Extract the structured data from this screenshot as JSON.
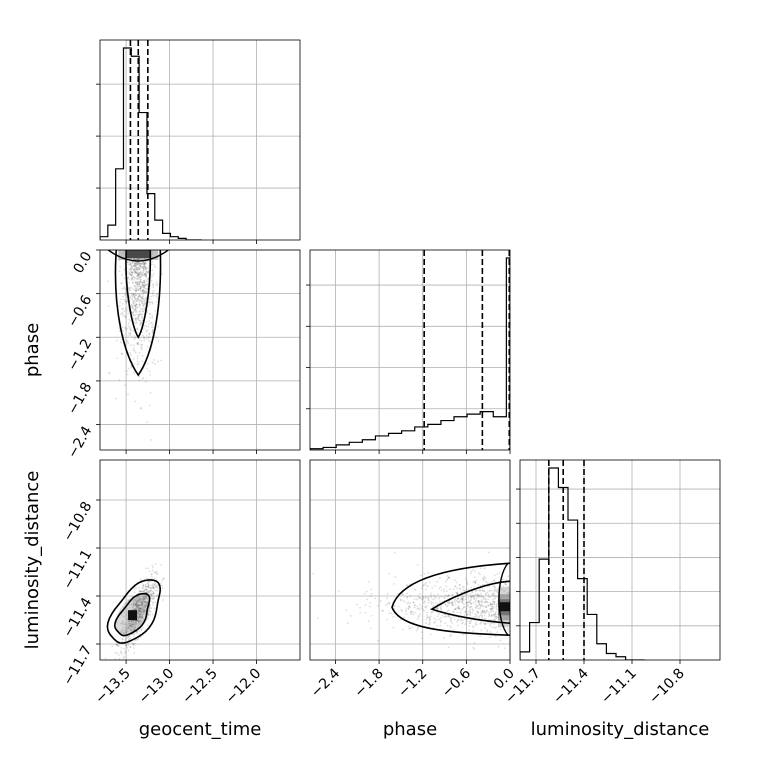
{
  "chart_data": {
    "type": "corner",
    "parameters": [
      "geocent_time",
      "phase",
      "luminosity_distance"
    ],
    "axis_labels": {
      "bottom_x": [
        "geocent_time",
        "phase",
        "luminosity_distance"
      ],
      "left_y": [
        "phase",
        "luminosity_distance"
      ]
    },
    "ranges": {
      "geocent_time": [
        -13.8,
        -11.5
      ],
      "phase": [
        -2.75,
        0.0
      ],
      "luminosity_distance": [
        -11.8,
        -10.55
      ]
    },
    "ticks": {
      "geocent_time": [
        -13.5,
        -13.0,
        -12.5,
        -12.0
      ],
      "geocent_time_labels": [
        "−13.5",
        "−13.0",
        "−12.5",
        "−12.0"
      ],
      "phase": [
        -2.4,
        -1.8,
        -1.2,
        -0.6,
        0.0
      ],
      "phase_labels": [
        "−2.4",
        "−1.8",
        "−1.2",
        "−0.6",
        "0.0"
      ],
      "luminosity_distance": [
        -11.7,
        -11.4,
        -11.1,
        -10.8
      ],
      "luminosity_distance_labels": [
        "−11.7",
        "−11.4",
        "−11.1",
        "−10.8"
      ]
    },
    "quantiles": {
      "geocent_time": [
        -13.45,
        -13.36,
        -13.25
      ],
      "phase": [
        -1.18,
        -0.38,
        -0.01
      ],
      "luminosity_distance": [
        -11.62,
        -11.53,
        -11.4
      ]
    },
    "histograms": {
      "geocent_time": {
        "bin_edges": [
          -13.8,
          -13.71,
          -13.62,
          -13.53,
          -13.44,
          -13.35,
          -13.26,
          -13.17,
          -13.08,
          -12.99,
          -12.9,
          -12.81,
          -12.72,
          -12.63
        ],
        "counts": [
          2,
          9,
          43,
          116,
          111,
          77,
          28,
          12,
          4,
          2,
          1,
          0,
          0
        ]
      },
      "phase": {
        "bin_edges": [
          -2.75,
          -2.57,
          -2.39,
          -2.21,
          -2.03,
          -1.85,
          -1.67,
          -1.49,
          -1.31,
          -1.13,
          -0.95,
          -0.77,
          -0.59,
          -0.41,
          -0.23,
          -0.05,
          0.0
        ],
        "counts": [
          1,
          2,
          4,
          6,
          8,
          11,
          13,
          15,
          18,
          20,
          23,
          26,
          28,
          30,
          26,
          150
        ]
      },
      "luminosity_distance": {
        "bin_edges": [
          -11.8,
          -11.74,
          -11.68,
          -11.62,
          -11.56,
          -11.5,
          -11.44,
          -11.38,
          -11.32,
          -11.26,
          -11.2,
          -11.14,
          -11.08,
          -11.02
        ],
        "counts": [
          5,
          23,
          62,
          118,
          106,
          86,
          50,
          28,
          10,
          4,
          2,
          0,
          0
        ]
      }
    },
    "grid": true,
    "legend": "none"
  }
}
